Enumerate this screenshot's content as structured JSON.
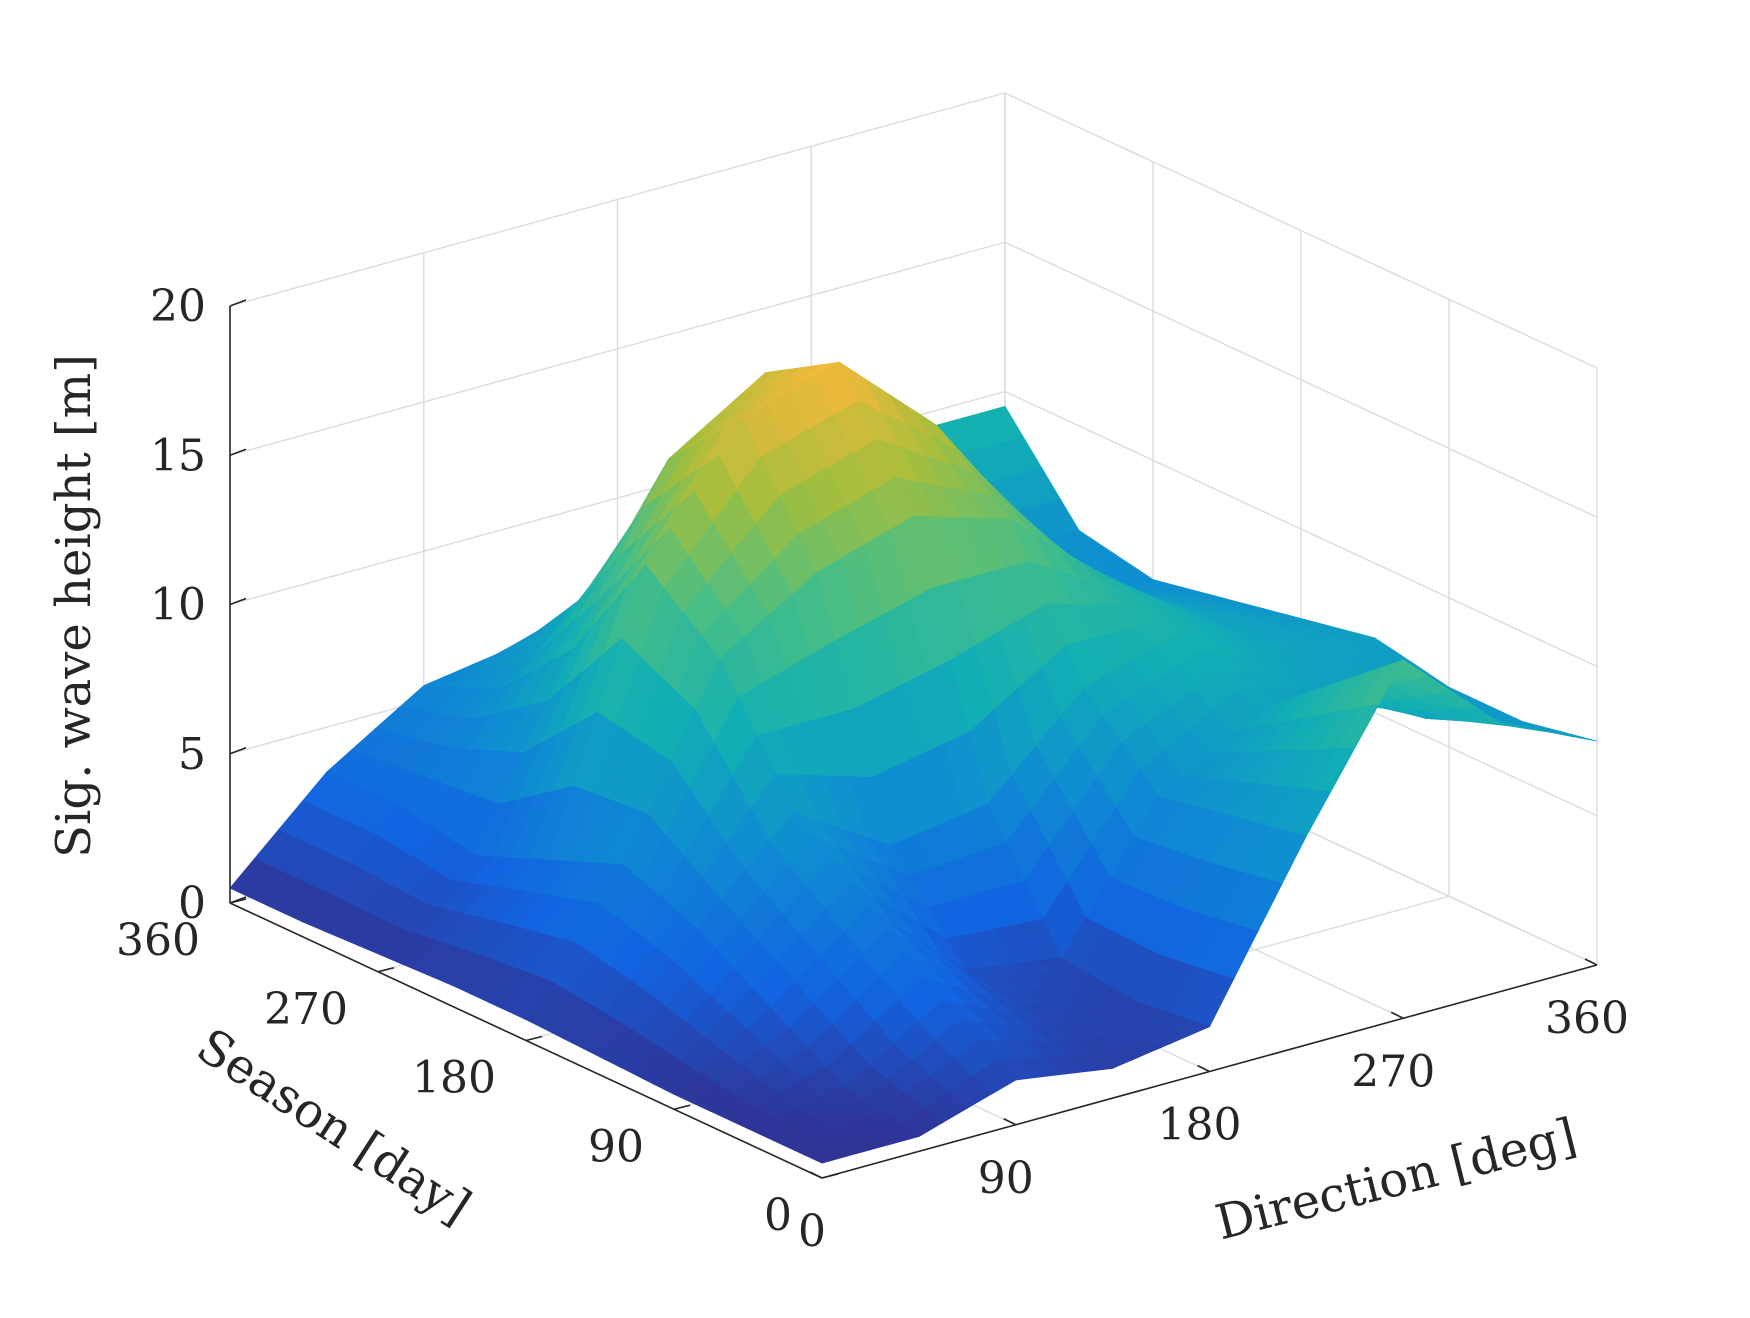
{
  "chart_data": {
    "type": "surface",
    "x_axis": {
      "label": "Direction [deg]",
      "ticks": [
        0,
        90,
        180,
        270,
        360
      ],
      "range": [
        0,
        360
      ]
    },
    "y_axis": {
      "label": "Season [day]",
      "ticks": [
        0,
        90,
        180,
        270,
        360
      ],
      "range": [
        0,
        360
      ]
    },
    "z_axis": {
      "label": "Sig. wave height [m]",
      "ticks": [
        0,
        5,
        10,
        15,
        20
      ],
      "range": [
        0,
        20
      ]
    },
    "grid": true,
    "colormap": "parula",
    "direction_deg": [
      0,
      45,
      90,
      135,
      180,
      225,
      270,
      315,
      360
    ],
    "season_day": [
      0,
      45,
      90,
      135,
      180,
      225,
      270,
      315,
      360
    ],
    "z": [
      [
        0.5,
        0.5,
        1.5,
        1.0,
        1.5,
        7.0,
        12.0,
        9.0,
        7.5
      ],
      [
        0.5,
        1.0,
        3.0,
        1.5,
        1.2,
        6.5,
        10.0,
        8.0,
        7.0
      ],
      [
        0.5,
        2.5,
        5.0,
        2.0,
        1.5,
        6.0,
        8.0,
        7.5,
        7.0
      ],
      [
        0.6,
        4.0,
        7.0,
        5.0,
        5.5,
        8.5,
        9.5,
        8.0,
        7.5
      ],
      [
        0.7,
        5.0,
        11.0,
        13.0,
        14.0,
        13.0,
        10.0,
        8.0,
        7.0
      ],
      [
        0.7,
        4.0,
        13.0,
        17.0,
        18.0,
        15.0,
        10.5,
        7.5,
        6.5
      ],
      [
        0.6,
        3.0,
        9.0,
        14.5,
        16.5,
        12.0,
        9.0,
        6.5,
        6.0
      ],
      [
        0.5,
        3.5,
        6.5,
        9.0,
        9.5,
        8.0,
        7.5,
        6.5,
        6.5
      ],
      [
        0.5,
        3.5,
        5.5,
        6.0,
        5.0,
        7.0,
        9.0,
        9.5,
        9.5
      ]
    ]
  }
}
